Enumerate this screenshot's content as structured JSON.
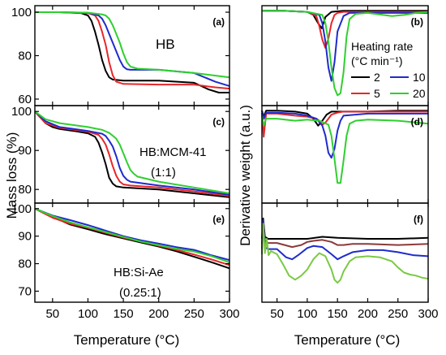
{
  "colors": {
    "2": "#000000",
    "5": "#e8262a",
    "10": "#1f2bcc",
    "20": "#2fcf2f",
    "f_series_1": "#000000",
    "f_series_2": "#8b3a3a",
    "f_series_3": "#1f2bcc",
    "f_series_4": "#7ac943"
  },
  "axis_titles": {
    "x_left": "Temperature (°C)",
    "x_right": "Temperature (°C)",
    "y_left": "Mass loss (%)",
    "y_right": "Derivative weight (a.u.)"
  },
  "legend": {
    "title": "Heating rate",
    "unit": "(°C min⁻¹)",
    "entries": [
      "2",
      "10",
      "5",
      "20"
    ]
  },
  "chart_data": [
    {
      "id": "a",
      "label": "(a)",
      "type": "line",
      "annotation": [
        "HB"
      ],
      "xlabel": "",
      "ylabel": "",
      "xlim": [
        25,
        300
      ],
      "ylim": [
        57,
        103
      ],
      "xticks": [
        50,
        100,
        150,
        200,
        250,
        300
      ],
      "show_xtick_labels": false,
      "yticks": [
        60,
        80,
        100
      ],
      "series": [
        {
          "name": "2",
          "x": [
            25,
            60,
            90,
            100,
            105,
            110,
            115,
            120,
            125,
            130,
            135,
            150,
            200,
            250,
            270,
            285,
            300
          ],
          "y": [
            100,
            100,
            99.6,
            98.5,
            96,
            91,
            85,
            78,
            73,
            70,
            69,
            68.5,
            68.5,
            67.5,
            64.5,
            63,
            63
          ]
        },
        {
          "name": "5",
          "x": [
            25,
            60,
            100,
            110,
            115,
            120,
            125,
            130,
            135,
            140,
            150,
            200,
            250,
            265,
            280,
            300
          ],
          "y": [
            100,
            100,
            99.6,
            98.5,
            96,
            91,
            85,
            77,
            71,
            68,
            67,
            66.7,
            66.7,
            66,
            65.4,
            64.8
          ]
        },
        {
          "name": "10",
          "x": [
            25,
            60,
            100,
            115,
            120,
            125,
            130,
            135,
            140,
            145,
            150,
            155,
            160,
            200,
            250,
            280,
            300
          ],
          "y": [
            100,
            100,
            99.7,
            98.5,
            97,
            94,
            90,
            86,
            82,
            78,
            75,
            73.7,
            73.5,
            73.5,
            72,
            68,
            66
          ]
        },
        {
          "name": "20",
          "x": [
            25,
            60,
            100,
            120,
            125,
            130,
            135,
            140,
            145,
            150,
            155,
            160,
            170,
            200,
            250,
            300
          ],
          "y": [
            100,
            100,
            99.8,
            99,
            98.5,
            97,
            94,
            90,
            86,
            81,
            77,
            75,
            74,
            73.5,
            72,
            70
          ]
        }
      ]
    },
    {
      "id": "b",
      "label": "(b)",
      "type": "line",
      "xlabel": "",
      "ylabel": "",
      "xlim": [
        25,
        300
      ],
      "ylim": [
        -92,
        5
      ],
      "xticks": [
        50,
        100,
        150,
        200,
        250,
        300
      ],
      "show_xtick_labels": false,
      "yticks": [],
      "series": [
        {
          "name": "2",
          "x": [
            25,
            60,
            100,
            110,
            118,
            124,
            130,
            140,
            160,
            200,
            250,
            300
          ],
          "y": [
            0,
            0,
            -1,
            -4,
            -12,
            -17,
            -6,
            -1,
            0,
            0,
            0,
            0
          ]
        },
        {
          "name": "5",
          "x": [
            25,
            60,
            100,
            115,
            120,
            125,
            130,
            135,
            140,
            145,
            150,
            160,
            200,
            250,
            300
          ],
          "y": [
            0,
            0,
            -1,
            -5,
            -15,
            -28,
            -36,
            -27,
            -12,
            -4,
            -2,
            -1,
            -1,
            -1,
            -1
          ]
        },
        {
          "name": "10",
          "x": [
            25,
            60,
            100,
            120,
            125,
            130,
            135,
            140,
            145,
            150,
            160,
            170,
            200,
            250,
            300
          ],
          "y": [
            0,
            0,
            -1,
            -4,
            -12,
            -30,
            -55,
            -68,
            -50,
            -20,
            -5,
            -2,
            -2,
            -2,
            -2
          ]
        },
        {
          "name": "20",
          "x": [
            25,
            60,
            100,
            125,
            130,
            135,
            140,
            145,
            150,
            155,
            160,
            165,
            170,
            180,
            200,
            240,
            260,
            280,
            300
          ],
          "y": [
            0,
            0,
            -1,
            -4,
            -12,
            -30,
            -55,
            -75,
            -82,
            -80,
            -60,
            -25,
            -8,
            -3,
            -2,
            -5,
            -4,
            -2,
            -1
          ]
        }
      ]
    },
    {
      "id": "c",
      "label": "(c)",
      "type": "line",
      "annotation": [
        "HB:MCM-41",
        "(1:1)"
      ],
      "xlabel": "",
      "ylabel": "",
      "xlim": [
        25,
        300
      ],
      "ylim": [
        76.5,
        101.5
      ],
      "xticks": [
        50,
        100,
        150,
        200,
        250,
        300
      ],
      "show_xtick_labels": false,
      "yticks": [
        80,
        90,
        100
      ],
      "series": [
        {
          "name": "2",
          "x": [
            25,
            40,
            50,
            60,
            80,
            100,
            110,
            115,
            120,
            125,
            130,
            135,
            140,
            150,
            200,
            250,
            300
          ],
          "y": [
            100,
            97,
            96,
            95.5,
            95,
            94.4,
            93.5,
            92,
            89.5,
            86.5,
            83,
            81.5,
            80.8,
            80.5,
            80,
            79,
            78
          ]
        },
        {
          "name": "5",
          "x": [
            25,
            40,
            60,
            80,
            100,
            115,
            120,
            125,
            130,
            135,
            140,
            145,
            150,
            160,
            200,
            250,
            300
          ],
          "y": [
            100,
            97,
            95.8,
            95.3,
            94.8,
            94,
            93,
            91.5,
            89,
            86,
            83.5,
            82,
            81.3,
            81,
            80.5,
            79.5,
            78.3
          ]
        },
        {
          "name": "10",
          "x": [
            25,
            40,
            60,
            80,
            100,
            120,
            125,
            130,
            135,
            140,
            145,
            150,
            155,
            160,
            200,
            250,
            300
          ],
          "y": [
            100,
            97.5,
            96,
            95.5,
            95,
            94.3,
            93.7,
            92.5,
            91,
            88.5,
            85.5,
            83.5,
            82.5,
            82,
            81,
            80,
            78.6
          ]
        },
        {
          "name": "20",
          "x": [
            25,
            40,
            60,
            80,
            100,
            120,
            130,
            135,
            140,
            145,
            150,
            155,
            160,
            165,
            170,
            200,
            250,
            300
          ],
          "y": [
            100,
            98,
            97,
            96.5,
            96,
            95.3,
            94.5,
            93.8,
            93,
            91.5,
            89.3,
            87,
            85,
            84,
            83.3,
            82,
            80.5,
            79
          ]
        }
      ]
    },
    {
      "id": "d",
      "label": "(d)",
      "type": "line",
      "xlabel": "",
      "ylabel": "",
      "xlim": [
        25,
        300
      ],
      "ylim": [
        -92,
        5
      ],
      "xticks": [
        50,
        100,
        150,
        200,
        250,
        300
      ],
      "show_xtick_labels": false,
      "yticks": [],
      "series": [
        {
          "name": "2",
          "x": [
            25,
            28,
            32,
            50,
            80,
            100,
            110,
            118,
            125,
            132,
            140,
            160,
            200,
            250,
            300
          ],
          "y": [
            0,
            -6,
            0,
            0,
            -1,
            -3,
            -8,
            -15,
            -10,
            -4,
            -1,
            -1,
            -1,
            0,
            0
          ]
        },
        {
          "name": "5",
          "x": [
            25,
            28,
            32,
            50,
            80,
            100,
            115,
            120,
            125,
            130,
            135,
            140,
            150,
            160,
            200,
            250,
            300
          ],
          "y": [
            -2,
            -26,
            -3,
            -3,
            -5,
            -6,
            -8,
            -10,
            -14,
            -12,
            -8,
            -4,
            -2,
            -1,
            -1,
            -1,
            -1
          ]
        },
        {
          "name": "10",
          "x": [
            25,
            28,
            32,
            50,
            80,
            100,
            115,
            125,
            130,
            135,
            140,
            145,
            150,
            155,
            160,
            200,
            250,
            300
          ],
          "y": [
            0,
            -8,
            -2,
            -2,
            -3,
            -5,
            -8,
            -15,
            -25,
            -42,
            -47,
            -38,
            -20,
            -10,
            -5,
            -3,
            -3,
            -3
          ]
        },
        {
          "name": "20",
          "x": [
            25,
            28,
            32,
            50,
            80,
            100,
            120,
            135,
            140,
            145,
            150,
            155,
            160,
            165,
            170,
            180,
            200,
            250,
            300
          ],
          "y": [
            -5,
            -15,
            -8,
            -8,
            -10,
            -9,
            -10,
            -14,
            -25,
            -48,
            -72,
            -72,
            -50,
            -25,
            -13,
            -10,
            -9,
            -10,
            -13
          ]
        }
      ]
    },
    {
      "id": "e",
      "label": "(e)",
      "type": "line",
      "annotation": [
        "HB:Si-Ae",
        "(0.25:1)"
      ],
      "xlabel": "",
      "ylabel": "",
      "xlim": [
        25,
        300
      ],
      "ylim": [
        66,
        102
      ],
      "xticks": [
        50,
        100,
        150,
        200,
        250,
        300
      ],
      "show_xtick_labels": true,
      "yticks": [
        70,
        80,
        90,
        100
      ],
      "series": [
        {
          "name": "2",
          "x": [
            25,
            50,
            75,
            100,
            125,
            150,
            175,
            200,
            225,
            250,
            275,
            300
          ],
          "y": [
            100,
            97,
            94.2,
            92.5,
            90.7,
            89.2,
            87.7,
            86.2,
            84.5,
            82.5,
            80.5,
            78.3
          ]
        },
        {
          "name": "5",
          "x": [
            25,
            50,
            75,
            100,
            125,
            150,
            175,
            200,
            225,
            250,
            275,
            300
          ],
          "y": [
            100,
            96.7,
            94.5,
            93,
            91.2,
            89.5,
            88,
            86.5,
            85,
            83.3,
            81.5,
            79.5
          ]
        },
        {
          "name": "10",
          "x": [
            25,
            50,
            75,
            100,
            125,
            150,
            175,
            200,
            225,
            250,
            275,
            300
          ],
          "y": [
            100,
            97.5,
            95.8,
            94,
            92,
            90,
            88.5,
            87.3,
            86,
            85,
            83,
            81.3
          ]
        },
        {
          "name": "20",
          "x": [
            25,
            50,
            75,
            100,
            125,
            150,
            175,
            200,
            225,
            250,
            275,
            300
          ],
          "y": [
            100,
            97.3,
            95,
            93.2,
            91.5,
            89.7,
            88,
            86.7,
            85.4,
            84.4,
            82.7,
            80.5
          ]
        }
      ]
    },
    {
      "id": "f",
      "label": "(f)",
      "type": "line",
      "xlabel": "",
      "ylabel": "",
      "xlim": [
        25,
        300
      ],
      "ylim": [
        -92,
        5
      ],
      "xticks": [
        50,
        100,
        150,
        200,
        250,
        300
      ],
      "show_xtick_labels": true,
      "yticks": [],
      "series": [
        {
          "x": [
            25,
            27,
            30,
            35,
            50,
            100,
            125,
            150,
            200,
            250,
            300
          ],
          "y": [
            -30,
            -10,
            -28,
            -30,
            -30,
            -30,
            -28,
            -29,
            -30,
            -30,
            -29
          ]
        },
        {
          "x": [
            25,
            27,
            30,
            35,
            50,
            75,
            90,
            100,
            110,
            125,
            140,
            150,
            160,
            175,
            200,
            250,
            300
          ],
          "y": [
            -35,
            -12,
            -32,
            -34,
            -34,
            -38,
            -36,
            -33,
            -32,
            -31,
            -33,
            -36,
            -36,
            -35,
            -35,
            -36,
            -35
          ]
        },
        {
          "x": [
            25,
            27,
            30,
            35,
            50,
            65,
            75,
            85,
            100,
            110,
            125,
            140,
            150,
            160,
            175,
            200,
            225,
            250,
            275,
            300
          ],
          "y": [
            -40,
            -12,
            -38,
            -40,
            -40,
            -48,
            -50,
            -46,
            -39,
            -37,
            -38,
            -45,
            -50,
            -47,
            -43,
            -41,
            -41,
            -43,
            -46,
            -47
          ]
        },
        {
          "x": [
            25,
            27,
            30,
            33,
            36,
            40,
            50,
            60,
            70,
            80,
            90,
            100,
            110,
            120,
            130,
            140,
            145,
            150,
            155,
            160,
            170,
            180,
            200,
            220,
            240,
            250,
            260,
            270,
            280,
            290,
            300
          ],
          "y": [
            -45,
            -15,
            -44,
            -30,
            -46,
            -42,
            -45,
            -55,
            -66,
            -70,
            -66,
            -60,
            -50,
            -44,
            -47,
            -60,
            -70,
            -73,
            -70,
            -62,
            -52,
            -48,
            -47,
            -48,
            -52,
            -58,
            -63,
            -65,
            -66,
            -68,
            -69
          ]
        }
      ]
    }
  ]
}
